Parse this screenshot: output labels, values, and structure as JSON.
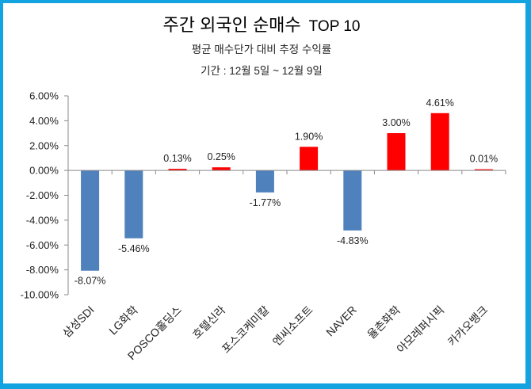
{
  "chart_data": {
    "type": "bar",
    "title": "주간 외국인 순매수",
    "title_suffix": "TOP 10",
    "subtitle": "평균 매수단가 대비 추정 수익률",
    "period": "기간 : 12월 5일 ~ 12월 9일",
    "xlabel": "",
    "ylabel": "",
    "categories": [
      "삼성SDI",
      "LG화학",
      "POSCO홀딩스",
      "호텔신라",
      "포스코케미칼",
      "엔씨소프트",
      "NAVER",
      "율촌화학",
      "아모레퍼시픽",
      "카카오뱅크"
    ],
    "values": [
      -8.07,
      -5.46,
      0.13,
      0.25,
      -1.77,
      1.9,
      -4.83,
      3.0,
      4.61,
      0.01
    ],
    "data_labels": [
      "-8.07%",
      "-5.46%",
      "0.13%",
      "0.25%",
      "-1.77%",
      "1.90%",
      "-4.83%",
      "3.00%",
      "4.61%",
      "0.01%"
    ],
    "ylim": [
      -10,
      6
    ],
    "yticks": [
      6,
      4,
      2,
      0,
      -2,
      -4,
      -6,
      -8,
      -10
    ],
    "ytick_labels": [
      "6.00%",
      "4.00%",
      "2.00%",
      "0.00%",
      "-2.00%",
      "-4.00%",
      "-6.00%",
      "-8.00%",
      "-10.00%"
    ],
    "grid": false,
    "legend": "none",
    "colors": {
      "positive": "#ff0000",
      "negative": "#4f81bd",
      "frame": "#12a3e0"
    }
  }
}
